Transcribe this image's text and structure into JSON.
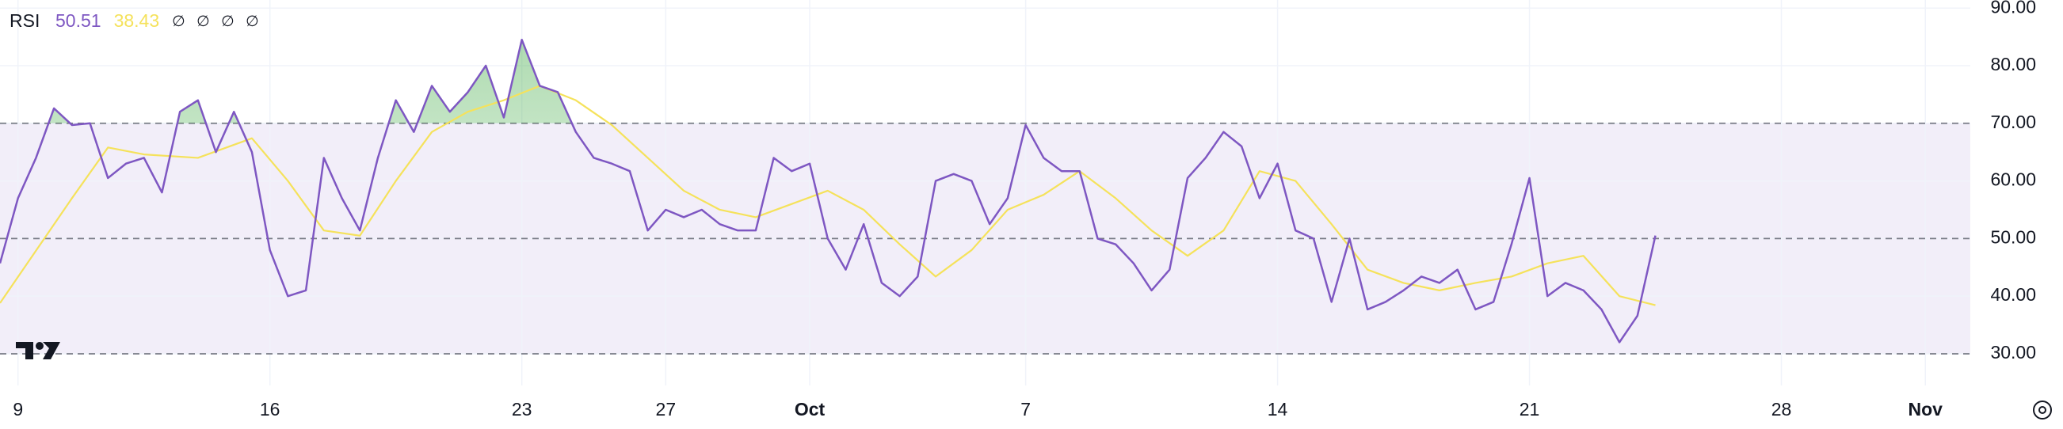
{
  "chart_data": {
    "type": "line",
    "title": "RSI",
    "hidden_inputs": [
      "∅",
      "∅",
      "∅",
      "∅"
    ],
    "xlim": [
      0,
      109.5
    ],
    "xticks": [
      {
        "value": 1,
        "label": "9"
      },
      {
        "value": 15,
        "label": "16"
      },
      {
        "value": 29,
        "label": "23"
      },
      {
        "value": 37,
        "label": "27"
      },
      {
        "value": 45,
        "label": "Oct",
        "major": true
      },
      {
        "value": 57,
        "label": "7"
      },
      {
        "value": 71,
        "label": "14"
      },
      {
        "value": 85,
        "label": "21"
      },
      {
        "value": 99,
        "label": "28"
      },
      {
        "value": 107,
        "label": "Nov",
        "major": true
      }
    ],
    "ylim": [
      24.5,
      91.4
    ],
    "yticks": [
      {
        "value": 30,
        "label": "30.00"
      },
      {
        "value": 40,
        "label": "40.00"
      },
      {
        "value": 50,
        "label": "50.00"
      },
      {
        "value": 60,
        "label": "60.00"
      },
      {
        "value": 70,
        "label": "70.00"
      },
      {
        "value": 80,
        "label": "80.00"
      },
      {
        "value": 90,
        "label": "90.00"
      }
    ],
    "levels": [
      70,
      50,
      30
    ],
    "band": [
      30,
      70
    ],
    "band_color": "#7e57c2",
    "overbought_color": "#4caf50",
    "grid": true,
    "series": [
      {
        "color": "#7e57c2",
        "current": 50.51,
        "x": [
          0,
          1,
          2,
          3,
          4,
          5,
          6,
          7,
          8,
          9,
          10,
          11,
          12,
          13,
          14,
          15,
          16,
          17,
          18,
          19,
          20,
          21,
          22,
          23,
          24,
          25,
          26,
          27,
          28,
          29,
          30,
          31,
          32,
          33,
          34,
          35,
          36,
          37,
          38,
          39,
          40,
          41,
          42,
          43,
          44,
          45,
          46,
          47,
          48,
          49,
          50,
          51,
          52,
          53,
          54,
          55,
          56,
          57,
          58,
          59,
          60,
          61,
          62,
          63,
          64,
          65,
          66,
          67,
          68,
          69,
          70,
          71,
          72,
          73,
          74,
          75,
          76,
          77,
          78,
          79,
          80,
          81,
          82,
          83,
          84,
          85,
          86,
          87,
          88,
          89,
          90,
          91,
          92
        ],
        "values": [
          45.7,
          57,
          64,
          72.6,
          69.7,
          70,
          60.5,
          63,
          64,
          58,
          72,
          74,
          65,
          72,
          65,
          48,
          40,
          41,
          64,
          57,
          51.4,
          64,
          74,
          68.5,
          76.5,
          72,
          75.4,
          80,
          71,
          84.5,
          76.5,
          75.4,
          68.5,
          64,
          63,
          61.7,
          51.4,
          55,
          53.7,
          55,
          52.5,
          51.4,
          51.4,
          64,
          61.7,
          63,
          50,
          44.6,
          52.5,
          42.3,
          40,
          43.4,
          60,
          61.2,
          60,
          52.5,
          57,
          69.7,
          64,
          61.7,
          61.7,
          50,
          49,
          45.7,
          41,
          44.6,
          60.5,
          64,
          68.5,
          66,
          57,
          63,
          51.4,
          50,
          39,
          50,
          37.7,
          39,
          41,
          43.4,
          42.3,
          44.6,
          37.7,
          39,
          49,
          60.5,
          40,
          42.3,
          41,
          37.7,
          32,
          36.6,
          50.51
        ]
      },
      {
        "color": "#f5e25b",
        "current": 38.43,
        "x": [
          0,
          4,
          6,
          8,
          11,
          14,
          16,
          18,
          20,
          22,
          24,
          26,
          28,
          30,
          32,
          34,
          36,
          38,
          40,
          42,
          44,
          46,
          48,
          50,
          52,
          54,
          56,
          58,
          60,
          62,
          64,
          66,
          68,
          70,
          72,
          74,
          76,
          78,
          80,
          82,
          84,
          86,
          88,
          90,
          92
        ],
        "values": [
          38.8,
          57,
          65.8,
          64.6,
          64,
          67.4,
          60,
          51.4,
          50.5,
          60,
          68.5,
          72,
          74,
          76.5,
          74,
          69.7,
          64,
          58.3,
          55,
          53.7,
          56,
          58.3,
          55,
          49,
          43.4,
          48,
          55,
          57.6,
          61.7,
          57,
          51.4,
          47,
          51.4,
          61.7,
          60,
          52.5,
          44.6,
          42.3,
          41,
          42.3,
          43.4,
          45.7,
          47,
          40,
          38.43
        ]
      }
    ]
  }
}
